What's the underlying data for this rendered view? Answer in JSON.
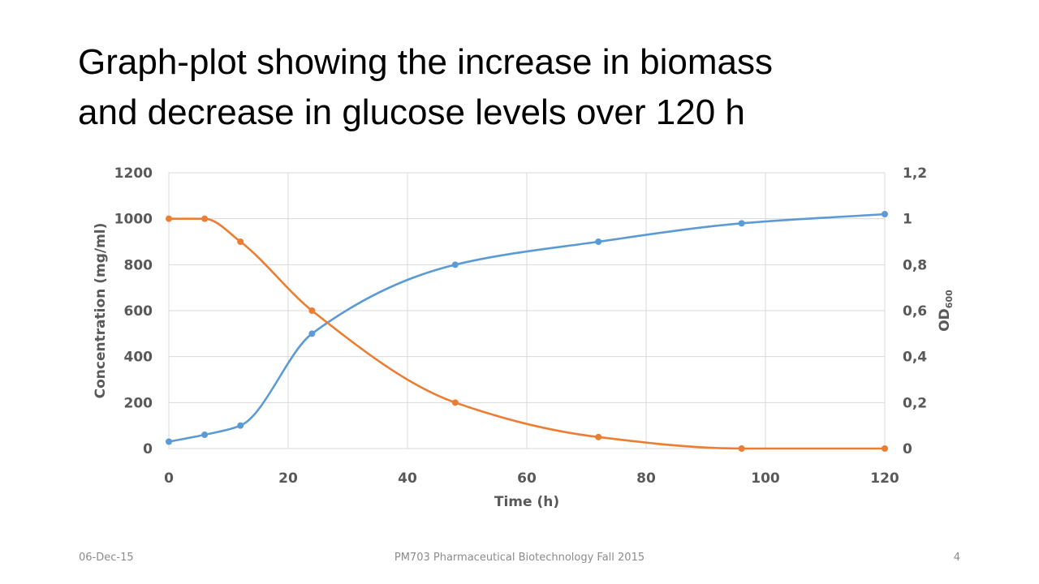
{
  "slide": {
    "title_line1": "Graph-plot showing the increase in biomass",
    "title_line2": "and decrease in glucose levels over 120 h"
  },
  "footer": {
    "date": "06-Dec-15",
    "course": "PM703 Pharmaceutical Biotechnology Fall 2015",
    "page": "4"
  },
  "chart_data": {
    "type": "line",
    "title": "",
    "xlabel": "Time (h)",
    "ylabel": "Concentration (mg/ml)",
    "y2label": "OD",
    "y2label_sub": "600",
    "xlim": [
      0,
      120
    ],
    "ylim": [
      0,
      1200
    ],
    "y2lim": [
      0,
      1.2
    ],
    "xticks": [
      "0",
      "20",
      "40",
      "60",
      "80",
      "100",
      "120"
    ],
    "xtick_values": [
      0,
      20,
      40,
      60,
      80,
      100,
      120
    ],
    "yticks": [
      "0",
      "200",
      "400",
      "600",
      "800",
      "1000",
      "1200"
    ],
    "ytick_values": [
      0,
      200,
      400,
      600,
      800,
      1000,
      1200
    ],
    "y2ticks": [
      "0",
      "0,2",
      "0,4",
      "0,6",
      "0,8",
      "1",
      "1,2"
    ],
    "y2tick_values": [
      0,
      0.2,
      0.4,
      0.6,
      0.8,
      1.0,
      1.2
    ],
    "grid": true,
    "smooth": true,
    "series": [
      {
        "axis": "right",
        "color": "#5B9BD5",
        "x": [
          0,
          6,
          12,
          24,
          48,
          72,
          96,
          120
        ],
        "y": [
          0.03,
          0.06,
          0.1,
          0.5,
          0.8,
          0.9,
          0.98,
          1.02
        ]
      },
      {
        "axis": "left",
        "color": "#ED7D31",
        "x": [
          0,
          6,
          12,
          24,
          48,
          72,
          96,
          120
        ],
        "y": [
          1000,
          1000,
          900,
          600,
          200,
          50,
          0,
          0
        ]
      }
    ]
  }
}
